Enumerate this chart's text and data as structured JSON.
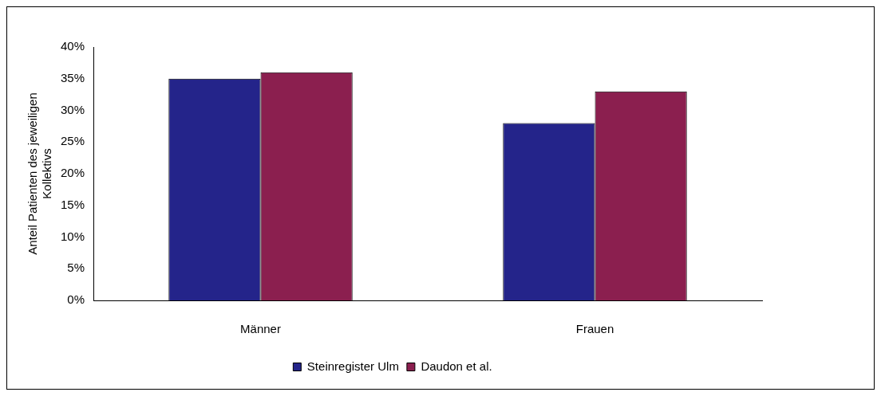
{
  "chart_data": {
    "type": "bar",
    "ylabel": [
      "Anteil Patienten des jeweiligen",
      "Kollektivs"
    ],
    "categories": [
      "Männer",
      "Frauen"
    ],
    "series": [
      {
        "name": "Steinregister Ulm",
        "color": "#24248a",
        "values": [
          35,
          28
        ]
      },
      {
        "name": "Daudon et al.",
        "color": "#8b1f4f",
        "values": [
          36,
          33
        ]
      }
    ],
    "ylim": [
      0,
      40
    ],
    "yticks": [
      {
        "value": 0,
        "label": "0%"
      },
      {
        "value": 5,
        "label": "5%"
      },
      {
        "value": 10,
        "label": "10%"
      },
      {
        "value": 15,
        "label": "15%"
      },
      {
        "value": 20,
        "label": "20%"
      },
      {
        "value": 25,
        "label": "25%"
      },
      {
        "value": 30,
        "label": "30%"
      },
      {
        "value": 35,
        "label": "35%"
      },
      {
        "value": 40,
        "label": "40%"
      }
    ],
    "grid": false,
    "legend": "bottom"
  }
}
